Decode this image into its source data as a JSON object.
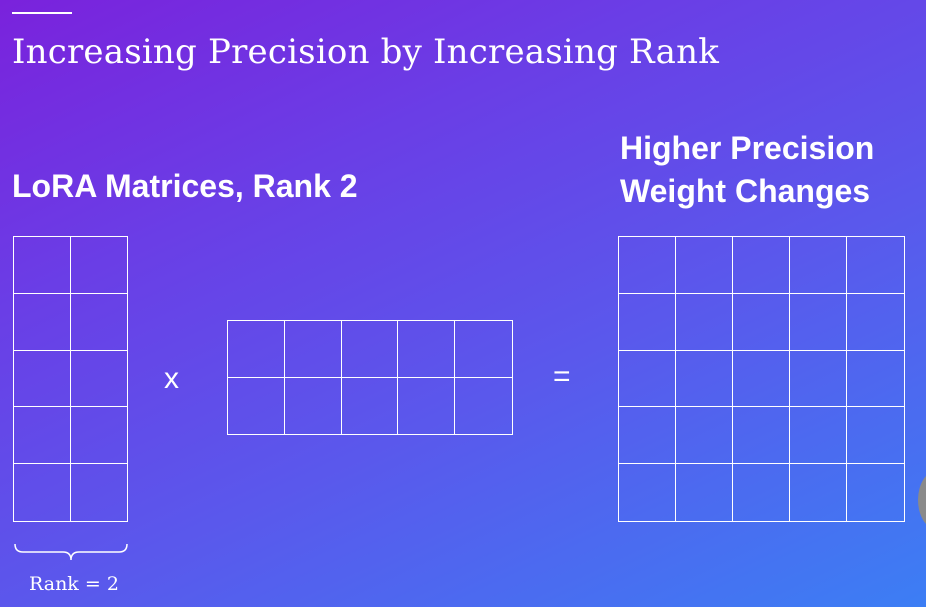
{
  "slide": {
    "title": "Increasing Precision by Increasing Rank"
  },
  "left_label": "LoRA Matrices, Rank 2",
  "right_label": {
    "line1": "Higher Precision",
    "line2": "Weight Changes"
  },
  "operators": {
    "times": "x",
    "equals": "="
  },
  "rank_caption": "Rank = 2",
  "matrices": {
    "a": {
      "rows": 5,
      "cols": 2
    },
    "b": {
      "rows": 2,
      "cols": 5
    },
    "c": {
      "rows": 5,
      "cols": 5
    }
  },
  "colors": {
    "background_start": "#7a22dc",
    "background_end": "#3c7ef4",
    "line": "#ffffff"
  }
}
